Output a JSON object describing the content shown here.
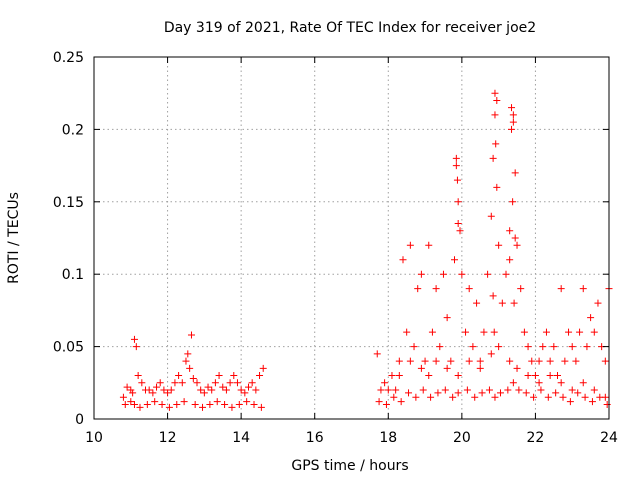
{
  "chart_data": {
    "type": "scatter",
    "title": "Day 319 of 2021, Rate Of TEC Index for receiver joe2",
    "xlabel": "GPS time / hours",
    "ylabel": "ROTI / TECUs",
    "xlim": [
      10,
      24
    ],
    "ylim": [
      0,
      0.25
    ],
    "xticks": [
      10,
      12,
      14,
      16,
      18,
      20,
      22,
      24
    ],
    "xtick_labels": [
      "10",
      "12",
      "14",
      "16",
      "18",
      "20",
      "22",
      "24"
    ],
    "yticks": [
      0,
      0.05,
      0.1,
      0.15,
      0.2,
      0.25
    ],
    "ytick_labels": [
      "0",
      "0.05",
      "0.1",
      "0.15",
      "0.2",
      "0.25"
    ],
    "grid": true,
    "marker": "plus",
    "color": "#ff0000",
    "series": [
      {
        "name": "ROTI",
        "x": [
          10.8,
          10.9,
          11.0,
          11.05,
          11.1,
          11.15,
          11.2,
          11.3,
          11.4,
          11.5,
          11.6,
          11.7,
          11.8,
          11.9,
          12.0,
          12.1,
          12.2,
          12.3,
          12.4,
          12.5,
          12.55,
          12.6,
          12.65,
          12.7,
          12.8,
          12.9,
          13.0,
          13.1,
          13.2,
          13.3,
          13.4,
          13.5,
          13.6,
          13.7,
          13.8,
          13.9,
          14.0,
          14.1,
          14.2,
          14.3,
          14.4,
          14.5,
          14.6,
          10.85,
          11.0,
          11.1,
          11.25,
          11.45,
          11.65,
          11.85,
          12.05,
          12.25,
          12.45,
          12.75,
          12.95,
          13.15,
          13.35,
          13.55,
          13.75,
          13.95,
          14.15,
          14.35,
          14.55,
          17.7,
          17.8,
          17.9,
          18.0,
          18.1,
          18.2,
          18.3,
          18.4,
          18.5,
          18.6,
          18.7,
          18.8,
          18.9,
          19.0,
          19.1,
          19.2,
          19.3,
          19.4,
          19.5,
          19.6,
          19.7,
          19.8,
          19.85,
          19.9,
          19.95,
          20.0,
          20.1,
          20.2,
          20.3,
          20.4,
          20.5,
          20.6,
          20.7,
          20.8,
          20.85,
          20.9,
          20.95,
          21.0,
          21.1,
          21.2,
          21.3,
          21.35,
          21.4,
          21.45,
          21.5,
          21.6,
          21.7,
          21.8,
          21.9,
          22.0,
          22.1,
          22.2,
          22.3,
          22.4,
          22.5,
          22.6,
          22.7,
          22.8,
          22.9,
          23.0,
          23.1,
          23.2,
          23.3,
          23.4,
          23.5,
          23.6,
          23.7,
          23.8,
          23.9,
          24.0,
          17.75,
          17.95,
          18.15,
          18.35,
          18.55,
          18.75,
          18.95,
          19.15,
          19.35,
          19.55,
          19.75,
          19.9,
          20.15,
          20.35,
          20.55,
          20.75,
          20.9,
          21.05,
          21.25,
          21.4,
          21.55,
          21.75,
          21.95,
          22.15,
          22.35,
          22.55,
          22.75,
          22.95,
          23.15,
          23.35,
          23.55,
          23.75,
          23.95,
          18.3,
          18.6,
          18.9,
          19.1,
          19.3,
          19.6,
          19.9,
          20.2,
          20.5,
          20.8,
          21.0,
          21.3,
          21.5,
          21.8,
          22.1,
          22.4,
          22.7,
          23.0,
          23.3,
          23.6,
          23.9,
          19.85,
          19.88,
          19.9,
          20.9,
          20.95,
          20.92,
          21.35,
          21.4,
          21.45,
          21.38,
          21.3,
          20.85,
          20.88,
          21.42
        ],
        "y": [
          0.015,
          0.022,
          0.02,
          0.018,
          0.055,
          0.05,
          0.03,
          0.025,
          0.02,
          0.02,
          0.018,
          0.022,
          0.025,
          0.02,
          0.018,
          0.02,
          0.025,
          0.03,
          0.025,
          0.04,
          0.045,
          0.035,
          0.058,
          0.028,
          0.025,
          0.02,
          0.018,
          0.022,
          0.02,
          0.025,
          0.03,
          0.022,
          0.02,
          0.025,
          0.03,
          0.025,
          0.02,
          0.018,
          0.022,
          0.025,
          0.02,
          0.03,
          0.035,
          0.01,
          0.012,
          0.01,
          0.008,
          0.01,
          0.012,
          0.01,
          0.008,
          0.01,
          0.012,
          0.01,
          0.008,
          0.01,
          0.012,
          0.01,
          0.008,
          0.01,
          0.012,
          0.01,
          0.008,
          0.045,
          0.02,
          0.025,
          0.02,
          0.03,
          0.02,
          0.04,
          0.11,
          0.06,
          0.12,
          0.05,
          0.09,
          0.1,
          0.04,
          0.12,
          0.06,
          0.09,
          0.05,
          0.1,
          0.07,
          0.04,
          0.11,
          0.18,
          0.15,
          0.13,
          0.1,
          0.06,
          0.09,
          0.05,
          0.08,
          0.04,
          0.06,
          0.1,
          0.14,
          0.18,
          0.21,
          0.16,
          0.12,
          0.08,
          0.1,
          0.13,
          0.2,
          0.21,
          0.17,
          0.12,
          0.09,
          0.06,
          0.05,
          0.04,
          0.03,
          0.04,
          0.05,
          0.06,
          0.04,
          0.05,
          0.03,
          0.09,
          0.04,
          0.06,
          0.05,
          0.04,
          0.06,
          0.09,
          0.05,
          0.07,
          0.06,
          0.08,
          0.05,
          0.04,
          0.09,
          0.012,
          0.01,
          0.015,
          0.012,
          0.018,
          0.015,
          0.02,
          0.015,
          0.018,
          0.02,
          0.015,
          0.018,
          0.02,
          0.015,
          0.018,
          0.02,
          0.015,
          0.018,
          0.02,
          0.025,
          0.02,
          0.018,
          0.015,
          0.02,
          0.015,
          0.018,
          0.015,
          0.012,
          0.018,
          0.015,
          0.012,
          0.015,
          0.01,
          0.03,
          0.04,
          0.035,
          0.03,
          0.04,
          0.035,
          0.03,
          0.04,
          0.035,
          0.045,
          0.05,
          0.04,
          0.035,
          0.03,
          0.025,
          0.03,
          0.025,
          0.02,
          0.025,
          0.02,
          0.015,
          0.175,
          0.165,
          0.135,
          0.225,
          0.22,
          0.19,
          0.215,
          0.205,
          0.125,
          0.15,
          0.11,
          0.085,
          0.06,
          0.08
        ]
      }
    ]
  }
}
